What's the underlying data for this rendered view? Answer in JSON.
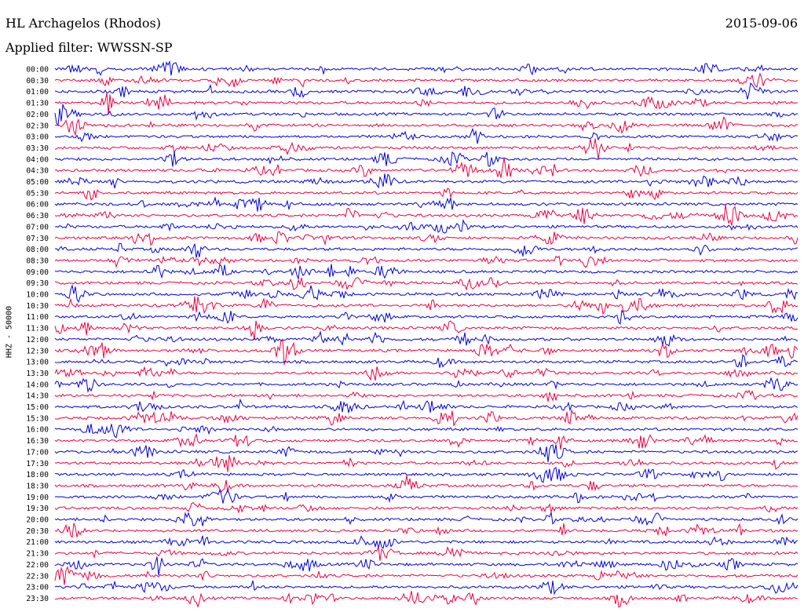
{
  "chart_data": {
    "type": "line",
    "title": "HL Archagelos (Rhodos)",
    "date": "2015-09-06",
    "subtitle": "Applied filter: WWSSN-SP",
    "ylabel": "HHZ - 50000",
    "xlabel": "",
    "grid": false,
    "row_labels": [
      "00:00",
      "00:30",
      "01:00",
      "01:30",
      "02:00",
      "02:30",
      "03:00",
      "03:30",
      "04:00",
      "04:30",
      "05:00",
      "05:30",
      "06:00",
      "06:30",
      "07:00",
      "07:30",
      "08:00",
      "08:30",
      "09:00",
      "09:30",
      "10:00",
      "10:30",
      "11:00",
      "11:30",
      "12:00",
      "12:30",
      "13:00",
      "13:30",
      "14:00",
      "14:30",
      "15:00",
      "15:30",
      "16:00",
      "16:30",
      "17:00",
      "17:30",
      "18:00",
      "18:30",
      "19:00",
      "19:30",
      "20:00",
      "20:30",
      "21:00",
      "21:30",
      "22:00",
      "22:30",
      "23:00",
      "23:30"
    ],
    "series_colors": [
      "#0000dd",
      "#ee0044"
    ]
  }
}
